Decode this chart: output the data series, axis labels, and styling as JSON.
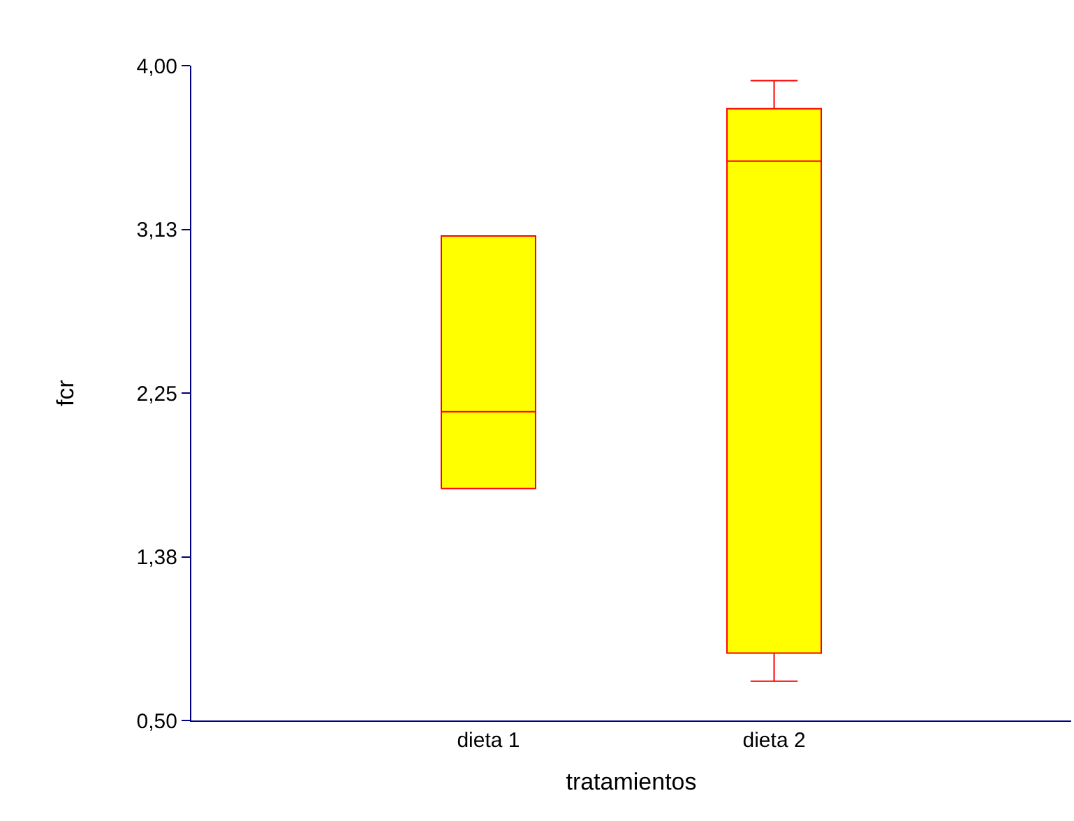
{
  "chart_data": {
    "type": "box",
    "xlabel": "tratamientos",
    "ylabel": "fcr",
    "categories": [
      "dieta 1",
      "dieta 2"
    ],
    "boxes": [
      {
        "low": 1.74,
        "q1": 1.74,
        "median": 2.15,
        "q3": 3.09,
        "high": 3.09
      },
      {
        "low": 0.71,
        "q1": 0.86,
        "median": 3.49,
        "q3": 3.77,
        "high": 3.92
      }
    ],
    "color": "#ffff00",
    "ylim": [
      0.5,
      4.0
    ],
    "yticks": [
      {
        "value": 0.5,
        "label": "0,50"
      },
      {
        "value": 1.375,
        "label": "1,38"
      },
      {
        "value": 2.25,
        "label": "2,25"
      },
      {
        "value": 3.125,
        "label": "3,13"
      },
      {
        "value": 4.0,
        "label": "4,00"
      }
    ]
  }
}
